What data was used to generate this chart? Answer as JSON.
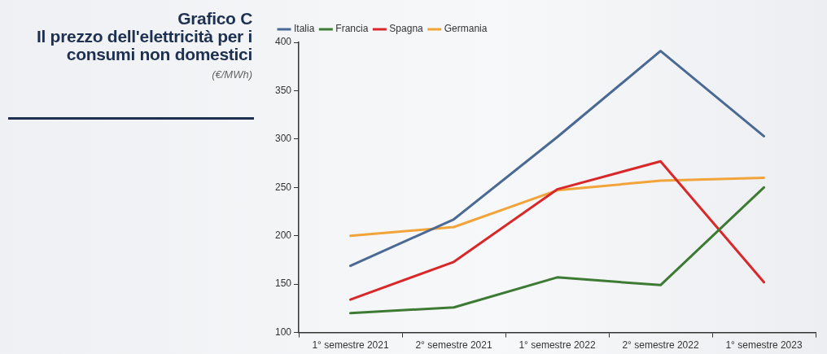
{
  "chart_data": {
    "type": "line",
    "title": "Grafico C",
    "subtitle": "Il prezzo dell'elettricità per i consumi non domestici",
    "ylabel": "(€/MWh)",
    "categories": [
      "1° semestre 2021",
      "2° semestre 2021",
      "1° semestre 2022",
      "2° semestre 2022",
      "1° semestre 2023"
    ],
    "series": [
      {
        "name": "Italia",
        "color": "#4a6a94",
        "values": [
          169,
          217,
          302,
          391,
          303
        ]
      },
      {
        "name": "Francia",
        "color": "#3d7a33",
        "values": [
          120,
          126,
          157,
          149,
          250
        ]
      },
      {
        "name": "Spagna",
        "color": "#d8282a",
        "values": [
          134,
          173,
          248,
          277,
          152
        ]
      },
      {
        "name": "Germania",
        "color": "#f2a43a",
        "values": [
          200,
          209,
          247,
          257,
          260
        ]
      }
    ],
    "ylim": [
      100,
      400
    ],
    "yticks": [
      100,
      150,
      200,
      250,
      300,
      350,
      400
    ],
    "legend": "top left",
    "marker": "none",
    "line_style": "solid"
  }
}
